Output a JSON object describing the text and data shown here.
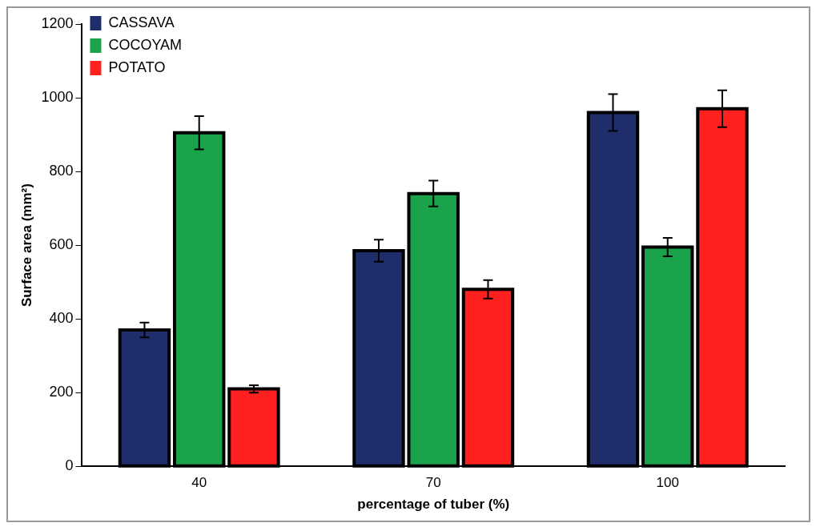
{
  "chart_data": {
    "type": "bar",
    "xlabel": "percentage of tuber (%)",
    "ylabel": "Surface area (mm²)",
    "categories": [
      "40",
      "70",
      "100"
    ],
    "series": [
      {
        "name": "CASSAVA",
        "color": "#1f2d6b",
        "values": [
          370,
          585,
          960
        ],
        "errors": [
          20,
          30,
          50
        ]
      },
      {
        "name": "COCOYAM",
        "color": "#1aa34a",
        "values": [
          905,
          740,
          595
        ],
        "errors": [
          45,
          35,
          25
        ]
      },
      {
        "name": "POTATO",
        "color": "#ff2020",
        "values": [
          210,
          480,
          970
        ],
        "errors": [
          10,
          25,
          50
        ]
      }
    ],
    "ylim": [
      0,
      1200
    ],
    "yticks": [
      0,
      200,
      400,
      600,
      800,
      1000,
      1200
    ],
    "grid": false,
    "legend": "top left"
  }
}
